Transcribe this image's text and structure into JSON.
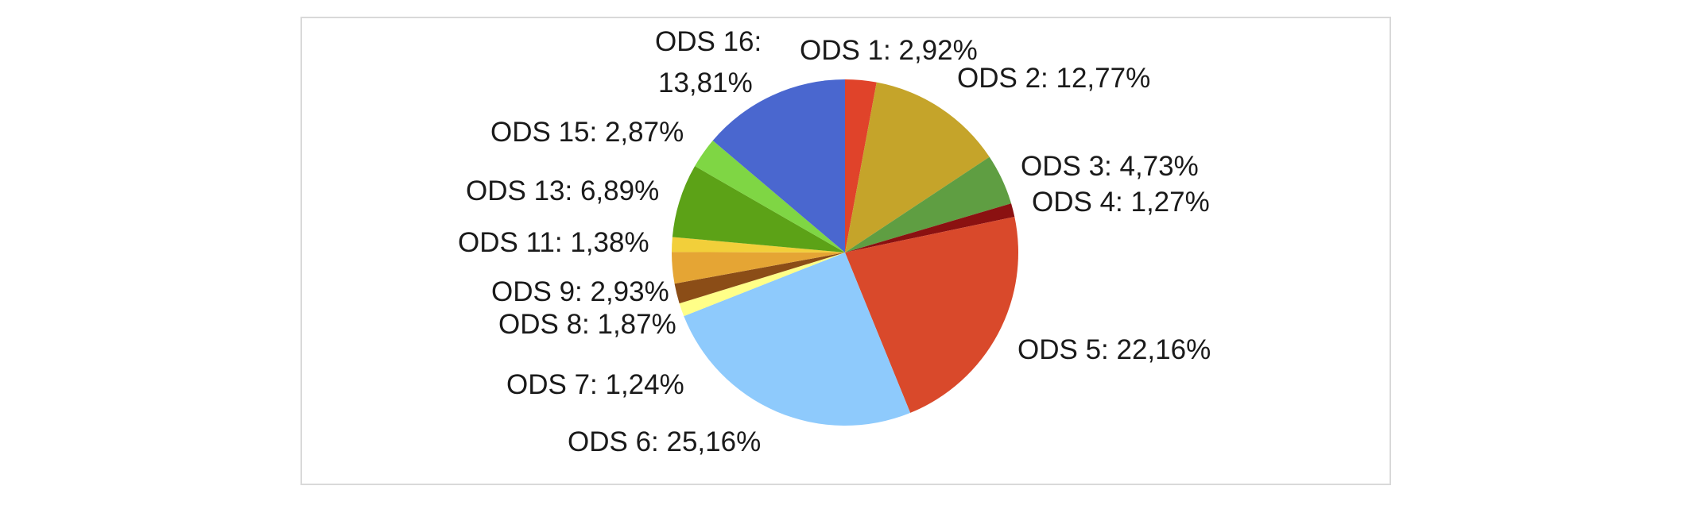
{
  "chart_data": {
    "type": "pie",
    "title": "",
    "legend": "none",
    "slices": [
      {
        "name": "ODS 1",
        "value": 2.92,
        "label": "ODS 1: 2,92%",
        "color": "#e0432a"
      },
      {
        "name": "ODS 2",
        "value": 12.77,
        "label": "ODS 2: 12,77%",
        "color": "#c5a42a"
      },
      {
        "name": "ODS 3",
        "value": 4.73,
        "label": "ODS 3: 4,73%",
        "color": "#5f9e42"
      },
      {
        "name": "ODS 4",
        "value": 1.27,
        "label": "ODS 4: 1,27%",
        "color": "#8b1111"
      },
      {
        "name": "ODS 5",
        "value": 22.16,
        "label": "ODS 5: 22,16%",
        "color": "#d9492b"
      },
      {
        "name": "ODS 6",
        "value": 25.16,
        "label": "ODS 6: 25,16%",
        "color": "#8ecafc"
      },
      {
        "name": "ODS 7",
        "value": 1.24,
        "label": "ODS 7: 1,24%",
        "color": "#ffff88"
      },
      {
        "name": "ODS 8",
        "value": 1.87,
        "label": "ODS 8: 1,87%",
        "color": "#8b4d17"
      },
      {
        "name": "ODS 9",
        "value": 2.93,
        "label": "ODS 9: 2,93%",
        "color": "#e5a534"
      },
      {
        "name": "ODS 11",
        "value": 1.38,
        "label": "ODS 11: 1,38%",
        "color": "#f2cf3a"
      },
      {
        "name": "ODS 13",
        "value": 6.89,
        "label": "ODS 13: 6,89%",
        "color": "#5ca217"
      },
      {
        "name": "ODS 15",
        "value": 2.87,
        "label": "ODS 15: 2,87%",
        "color": "#7fd644"
      },
      {
        "name": "ODS 16",
        "value": 13.81,
        "label": "ODS 16: 13,81%",
        "color": "#4a67cf"
      }
    ]
  }
}
